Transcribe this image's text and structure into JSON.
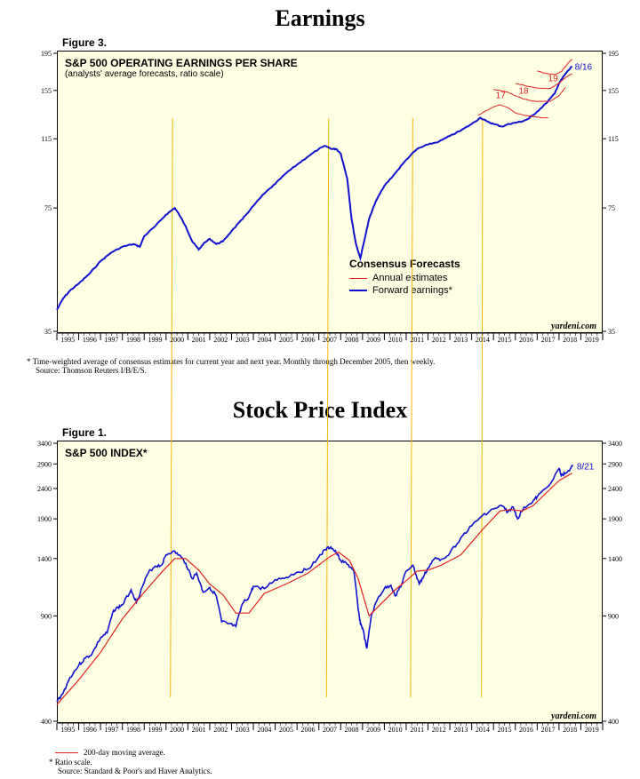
{
  "earnings": {
    "page_title": "Earnings",
    "figure_label": "Figure 3.",
    "credit": "yardeni.com",
    "footnote_1": "* Time-weighted average of consensus estimates for current year and next year. Monthly through December 2005, then weekly.",
    "footnote_2": "Source: Thomson Reuters I/B/E/S."
  },
  "stock": {
    "page_title": "Stock Price Index",
    "figure_label": "Figure 1.",
    "credit": "yardeni.com",
    "legend_ma": "200-day moving average.",
    "footnote_1": "* Ratio scale.",
    "footnote_2": "Source: Standard & Poor's and Haver Analytics."
  },
  "chart_data": [
    {
      "type": "line",
      "title": "S&P 500 OPERATING EARNINGS PER SHARE",
      "subtitle": "(analysts' average forecasts, ratio scale)",
      "scale": "log",
      "ylim": [
        35,
        195
      ],
      "y_ticks": [
        35,
        75,
        115,
        155,
        195
      ],
      "xlim": [
        1995,
        2020
      ],
      "x_ticks": [
        "1995",
        "1996",
        "1997",
        "1998",
        "1999",
        "2000",
        "2001",
        "2002",
        "2003",
        "2004",
        "2005",
        "2006",
        "2007",
        "2008",
        "2009",
        "2010",
        "2011",
        "2012",
        "2013",
        "2014",
        "2015",
        "2016",
        "2017",
        "2018",
        "2019"
      ],
      "legend": {
        "title": "Consensus Forecasts",
        "entries": [
          "Annual estimates",
          "Forward earnings*"
        ],
        "position": "center"
      },
      "end_label": "8/16",
      "color_forward": "#1010d0",
      "color_annual": "#e02020",
      "annual_labels": [
        {
          "label": "17",
          "x": 2015.1,
          "y": 148
        },
        {
          "label": "18",
          "x": 2016.15,
          "y": 152
        },
        {
          "label": "19",
          "x": 2017.5,
          "y": 164
        }
      ],
      "series": [
        {
          "name": "Forward earnings*",
          "x": [
            1995.0,
            1995.3,
            1995.6,
            1996.0,
            1996.5,
            1997.0,
            1997.5,
            1998.0,
            1998.5,
            1998.8,
            1999.0,
            1999.5,
            2000.0,
            2000.4,
            2000.6,
            2000.9,
            2001.2,
            2001.5,
            2001.7,
            2002.0,
            2002.3,
            2002.6,
            2003.0,
            2003.5,
            2004.0,
            2004.5,
            2005.0,
            2005.5,
            2006.0,
            2006.5,
            2007.0,
            2007.3,
            2007.6,
            2007.8,
            2008.0,
            2008.3,
            2008.5,
            2008.7,
            2008.9,
            2009.1,
            2009.3,
            2009.6,
            2010.0,
            2010.5,
            2011.0,
            2011.5,
            2012.0,
            2012.5,
            2013.0,
            2013.5,
            2014.0,
            2014.4,
            2014.7,
            2015.0,
            2015.4,
            2015.7,
            2016.0,
            2016.3,
            2016.6,
            2017.0,
            2017.4,
            2017.8,
            2018.0,
            2018.3,
            2018.6
          ],
          "values": [
            40,
            43,
            45,
            47,
            50,
            54,
            57,
            59,
            60,
            59,
            63,
            67,
            72,
            75,
            72,
            67,
            61,
            58,
            60,
            62,
            60,
            61,
            65,
            70,
            76,
            82,
            87,
            93,
            98,
            103,
            108,
            110,
            108,
            108,
            105,
            90,
            70,
            60,
            55,
            62,
            70,
            78,
            86,
            93,
            101,
            108,
            111,
            113,
            117,
            121,
            126,
            131,
            128,
            126,
            124,
            126,
            127,
            128,
            130,
            136,
            143,
            152,
            162,
            172,
            180
          ]
        },
        {
          "name": "Annual estimates",
          "x": [
            2014.3,
            2014.7,
            2015.0,
            2015.3,
            2015.7,
            2016.0,
            2016.4,
            2016.8,
            2017.2,
            2017.5
          ],
          "values": [
            133,
            137,
            140,
            142,
            139,
            135,
            133,
            132,
            131,
            131
          ]
        },
        {
          "name": "Annual estimates",
          "x": [
            2015.0,
            2015.3,
            2015.7,
            2016.0,
            2016.4,
            2016.8,
            2017.2,
            2017.6,
            2018.0,
            2018.3
          ],
          "values": [
            156,
            155,
            153,
            150,
            147,
            145,
            145,
            145,
            150,
            158
          ]
        },
        {
          "name": "Annual estimates",
          "x": [
            2016.0,
            2016.4,
            2016.8,
            2017.2,
            2017.6,
            2018.0,
            2018.3,
            2018.6
          ],
          "values": [
            162,
            160,
            158,
            157,
            157,
            162,
            168,
            172
          ]
        },
        {
          "name": "Annual estimates",
          "x": [
            2017.0,
            2017.4,
            2017.8,
            2018.1,
            2018.4,
            2018.6
          ],
          "values": [
            175,
            172,
            171,
            174,
            183,
            188
          ]
        }
      ]
    },
    {
      "type": "line",
      "title": "S&P 500 INDEX*",
      "scale": "log",
      "ylim": [
        400,
        3400
      ],
      "y_ticks": [
        400,
        900,
        1400,
        1900,
        2400,
        2900,
        3400
      ],
      "xlim": [
        1995,
        2020
      ],
      "x_ticks": [
        "1995",
        "1996",
        "1997",
        "1998",
        "1999",
        "2000",
        "2001",
        "2002",
        "2003",
        "2004",
        "2005",
        "2006",
        "2007",
        "2008",
        "2009",
        "2010",
        "2011",
        "2012",
        "2013",
        "2014",
        "2015",
        "2016",
        "2017",
        "2018",
        "2019"
      ],
      "end_label": "8/21",
      "color_index": "#1010d0",
      "color_ma": "#e02020",
      "series": [
        {
          "name": "S&P 500 INDEX*",
          "x": [
            1995.0,
            1995.3,
            1995.6,
            1996.0,
            1996.3,
            1996.6,
            1997.0,
            1997.3,
            1997.6,
            1997.8,
            1998.0,
            1998.4,
            1998.65,
            1998.9,
            1999.2,
            1999.5,
            1999.8,
            2000.0,
            2000.3,
            2000.6,
            2000.9,
            2001.2,
            2001.4,
            2001.7,
            2002.0,
            2002.3,
            2002.55,
            2002.8,
            2003.2,
            2003.5,
            2003.8,
            2004.0,
            2004.5,
            2005.0,
            2005.5,
            2006.0,
            2006.5,
            2007.0,
            2007.3,
            2007.55,
            2007.8,
            2008.0,
            2008.3,
            2008.6,
            2008.8,
            2008.9,
            2009.0,
            2009.2,
            2009.4,
            2009.7,
            2010.0,
            2010.3,
            2010.5,
            2010.8,
            2011.0,
            2011.3,
            2011.6,
            2011.8,
            2012.0,
            2012.3,
            2012.6,
            2013.0,
            2013.5,
            2014.0,
            2014.5,
            2015.0,
            2015.4,
            2015.65,
            2015.9,
            2016.1,
            2016.4,
            2016.8,
            2017.0,
            2017.5,
            2018.0,
            2018.1,
            2018.3,
            2018.65
          ],
          "values": [
            465,
            500,
            560,
            615,
            650,
            670,
            760,
            790,
            940,
            960,
            980,
            1100,
            1000,
            1120,
            1260,
            1320,
            1330,
            1440,
            1480,
            1440,
            1350,
            1200,
            1250,
            1080,
            1120,
            1050,
            860,
            850,
            830,
            990,
            1040,
            1130,
            1110,
            1190,
            1210,
            1260,
            1290,
            1420,
            1500,
            1530,
            1460,
            1380,
            1340,
            1280,
            950,
            850,
            820,
            700,
            900,
            1030,
            1110,
            1140,
            1050,
            1150,
            1270,
            1330,
            1150,
            1220,
            1300,
            1400,
            1390,
            1460,
            1640,
            1800,
            1950,
            2050,
            2100,
            2000,
            2080,
            1900,
            2080,
            2170,
            2250,
            2440,
            2800,
            2650,
            2700,
            2860
          ]
        },
        {
          "name": "200-day moving average.",
          "x": [
            1995.0,
            1996.0,
            1997.0,
            1998.0,
            1999.0,
            1999.8,
            2000.4,
            2000.9,
            2001.5,
            2002.0,
            2002.6,
            2003.2,
            2003.8,
            2004.5,
            2005.5,
            2006.5,
            2007.5,
            2007.9,
            2008.4,
            2008.8,
            2009.3,
            2009.8,
            2010.5,
            2011.0,
            2011.5,
            2012.0,
            2012.6,
            2013.5,
            2014.5,
            2015.3,
            2015.8,
            2016.3,
            2016.8,
            2017.5,
            2018.0,
            2018.6
          ],
          "values": [
            455,
            550,
            680,
            880,
            1080,
            1260,
            1400,
            1400,
            1280,
            1150,
            1060,
            920,
            920,
            1070,
            1150,
            1250,
            1420,
            1470,
            1380,
            1200,
            900,
            980,
            1100,
            1180,
            1270,
            1280,
            1330,
            1440,
            1750,
            2020,
            2040,
            2020,
            2100,
            2350,
            2550,
            2700
          ]
        }
      ]
    }
  ]
}
